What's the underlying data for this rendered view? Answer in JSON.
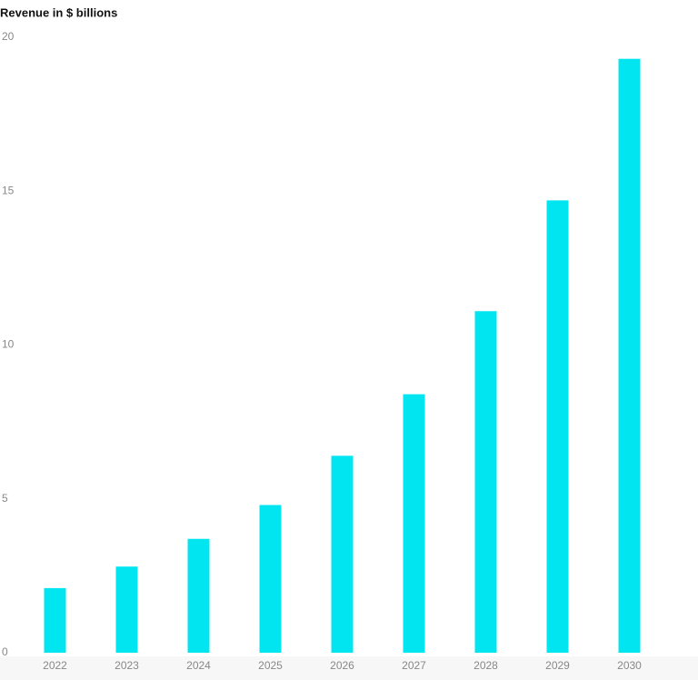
{
  "chart_data": {
    "type": "bar",
    "title": "Revenue in $ billions",
    "categories": [
      "2022",
      "2023",
      "2024",
      "2025",
      "2026",
      "2027",
      "2028",
      "2029",
      "2030"
    ],
    "values": [
      2.1,
      2.8,
      3.7,
      4.8,
      6.4,
      8.4,
      11.1,
      14.7,
      19.3
    ],
    "color": "#00e5f0",
    "ylim": [
      0,
      20
    ],
    "yticks": [
      0,
      5,
      10,
      15,
      20
    ],
    "grid": false
  }
}
